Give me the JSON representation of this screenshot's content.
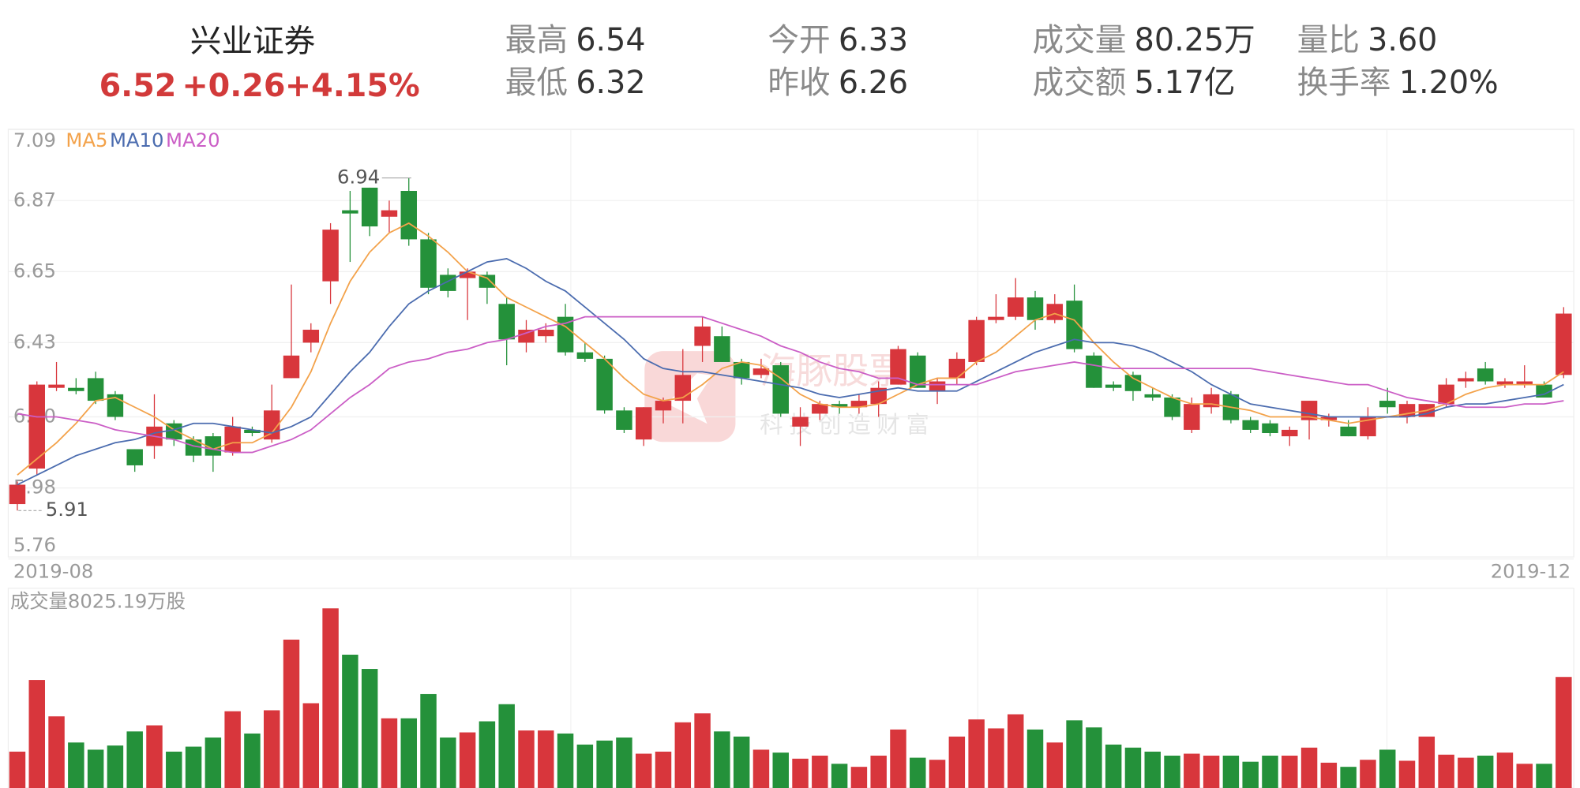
{
  "header": {
    "name": "兴业证券",
    "price": "6.52",
    "change": "+0.26",
    "change_pct": "+4.15%",
    "stats": [
      {
        "label": "最高",
        "value": "6.54"
      },
      {
        "label": "最低",
        "value": "6.32"
      },
      {
        "label": "今开",
        "value": "6.33"
      },
      {
        "label": "昨收",
        "value": "6.26"
      },
      {
        "label": "成交量",
        "value": "80.25万"
      },
      {
        "label": "成交额",
        "value": "5.17亿"
      },
      {
        "label": "量比",
        "value": "3.60"
      },
      {
        "label": "换手率",
        "value": "1.20%"
      }
    ]
  },
  "watermark": {
    "brand": "海豚股票",
    "slogan": "科技创造财富"
  },
  "chart_data": [
    {
      "type": "candlestick",
      "up_color": "#d8363c",
      "down_color": "#24913a",
      "grid": true,
      "categories": [
        "2019-08",
        null,
        null,
        null,
        null,
        null,
        null,
        null,
        null,
        null,
        null,
        null,
        null,
        null,
        null,
        null,
        null,
        null,
        null,
        null,
        null,
        null,
        null,
        null,
        null,
        null,
        null,
        null,
        null,
        null,
        null,
        null,
        null,
        null,
        null,
        null,
        null,
        null,
        null,
        null,
        null,
        null,
        null,
        null,
        null,
        null,
        null,
        null,
        null,
        null,
        null,
        null,
        null,
        null,
        null,
        null,
        null,
        null,
        null,
        null,
        null,
        null,
        null,
        null,
        null,
        null,
        null,
        null,
        null,
        null,
        null,
        null,
        null,
        null,
        null,
        null,
        null,
        null,
        null,
        "2019-12"
      ],
      "open": [
        5.93,
        6.04,
        6.29,
        6.29,
        6.32,
        6.27,
        6.1,
        6.11,
        6.18,
        6.13,
        6.14,
        6.09,
        6.16,
        6.13,
        6.32,
        6.43,
        6.62,
        6.84,
        6.91,
        6.82,
        6.9,
        6.75,
        6.64,
        6.63,
        6.64,
        6.55,
        6.43,
        6.45,
        6.51,
        6.4,
        6.38,
        6.22,
        6.13,
        6.22,
        6.25,
        6.42,
        6.45,
        6.37,
        6.33,
        6.36,
        6.17,
        6.21,
        6.24,
        6.23,
        6.24,
        6.3,
        6.39,
        6.28,
        6.32,
        6.37,
        6.5,
        6.51,
        6.57,
        6.5,
        6.56,
        6.39,
        6.3,
        6.33,
        6.27,
        6.26,
        6.16,
        6.23,
        6.27,
        6.19,
        6.18,
        6.14,
        6.19,
        6.19,
        6.17,
        6.14,
        6.25,
        6.2,
        6.2,
        6.24,
        6.31,
        6.35,
        6.3,
        6.3,
        6.3,
        6.33
      ],
      "high": [
        6.0,
        6.31,
        6.37,
        6.32,
        6.34,
        6.28,
        6.1,
        6.27,
        6.19,
        6.14,
        6.15,
        6.2,
        6.17,
        6.3,
        6.61,
        6.49,
        6.8,
        6.9,
        6.91,
        6.87,
        6.94,
        6.77,
        6.66,
        6.66,
        6.65,
        6.57,
        6.5,
        6.49,
        6.55,
        6.43,
        6.39,
        6.23,
        6.23,
        6.26,
        6.41,
        6.51,
        6.48,
        6.38,
        6.38,
        6.37,
        6.23,
        6.25,
        6.25,
        6.27,
        6.31,
        6.42,
        6.4,
        6.32,
        6.4,
        6.51,
        6.58,
        6.63,
        6.59,
        6.58,
        6.61,
        6.4,
        6.31,
        6.34,
        6.29,
        6.27,
        6.26,
        6.29,
        6.28,
        6.2,
        6.19,
        6.17,
        6.25,
        6.21,
        6.19,
        6.23,
        6.29,
        6.25,
        6.24,
        6.32,
        6.34,
        6.37,
        6.32,
        6.36,
        6.31,
        6.54
      ],
      "low": [
        5.91,
        6.02,
        6.28,
        6.27,
        6.24,
        6.19,
        6.03,
        6.07,
        6.11,
        6.06,
        6.03,
        6.08,
        6.14,
        6.12,
        6.32,
        6.4,
        6.55,
        6.68,
        6.76,
        6.77,
        6.73,
        6.58,
        6.57,
        6.5,
        6.55,
        6.36,
        6.4,
        6.43,
        6.39,
        6.37,
        6.21,
        6.15,
        6.11,
        6.18,
        6.18,
        6.37,
        6.37,
        6.3,
        6.32,
        6.2,
        6.11,
        6.19,
        6.21,
        6.21,
        6.2,
        6.3,
        6.29,
        6.24,
        6.3,
        6.36,
        6.49,
        6.5,
        6.47,
        6.49,
        6.4,
        6.29,
        6.28,
        6.25,
        6.25,
        6.19,
        6.15,
        6.21,
        6.18,
        6.15,
        6.14,
        6.11,
        6.13,
        6.17,
        6.14,
        6.13,
        6.21,
        6.18,
        6.2,
        6.23,
        6.29,
        6.3,
        6.29,
        6.29,
        6.26,
        6.32
      ],
      "close": [
        5.99,
        6.3,
        6.3,
        6.28,
        6.25,
        6.2,
        6.05,
        6.17,
        6.13,
        6.08,
        6.08,
        6.17,
        6.15,
        6.22,
        6.39,
        6.47,
        6.78,
        6.83,
        6.79,
        6.84,
        6.75,
        6.6,
        6.59,
        6.65,
        6.6,
        6.44,
        6.47,
        6.47,
        6.4,
        6.38,
        6.22,
        6.16,
        6.23,
        6.25,
        6.33,
        6.48,
        6.37,
        6.32,
        6.35,
        6.21,
        6.2,
        6.24,
        6.23,
        6.25,
        6.29,
        6.41,
        6.29,
        6.31,
        6.38,
        6.5,
        6.51,
        6.57,
        6.5,
        6.55,
        6.41,
        6.29,
        6.29,
        6.28,
        6.26,
        6.2,
        6.24,
        6.27,
        6.19,
        6.16,
        6.15,
        6.16,
        6.25,
        6.2,
        6.14,
        6.2,
        6.23,
        6.24,
        6.24,
        6.3,
        6.32,
        6.31,
        6.31,
        6.31,
        6.26,
        6.52
      ],
      "series": [
        {
          "name": "MA5",
          "color": "#f3a24a",
          "values": [
            6.02,
            6.07,
            6.12,
            6.18,
            6.25,
            6.26,
            6.23,
            6.2,
            6.16,
            6.13,
            6.1,
            6.12,
            6.12,
            6.15,
            6.23,
            6.34,
            6.49,
            6.62,
            6.71,
            6.77,
            6.8,
            6.76,
            6.71,
            6.65,
            6.63,
            6.57,
            6.54,
            6.51,
            6.48,
            6.43,
            6.38,
            6.32,
            6.27,
            6.25,
            6.26,
            6.3,
            6.35,
            6.37,
            6.36,
            6.32,
            6.27,
            6.24,
            6.23,
            6.23,
            6.24,
            6.27,
            6.3,
            6.32,
            6.32,
            6.37,
            6.4,
            6.45,
            6.5,
            6.52,
            6.5,
            6.43,
            6.37,
            6.32,
            6.29,
            6.26,
            6.24,
            6.24,
            6.23,
            6.22,
            6.2,
            6.2,
            6.2,
            6.19,
            6.18,
            6.19,
            6.2,
            6.21,
            6.22,
            6.24,
            6.27,
            6.29,
            6.3,
            6.3,
            6.3,
            6.34
          ]
        },
        {
          "name": "MA10",
          "color": "#4b6caf",
          "values": [
            5.99,
            6.02,
            6.05,
            6.08,
            6.1,
            6.12,
            6.13,
            6.15,
            6.16,
            6.18,
            6.18,
            6.17,
            6.16,
            6.15,
            6.17,
            6.2,
            6.27,
            6.34,
            6.4,
            6.48,
            6.55,
            6.59,
            6.62,
            6.65,
            6.68,
            6.69,
            6.66,
            6.62,
            6.59,
            6.54,
            6.49,
            6.44,
            6.38,
            6.35,
            6.34,
            6.34,
            6.33,
            6.32,
            6.31,
            6.3,
            6.29,
            6.27,
            6.26,
            6.27,
            6.28,
            6.29,
            6.28,
            6.28,
            6.28,
            6.31,
            6.34,
            6.37,
            6.4,
            6.42,
            6.44,
            6.43,
            6.43,
            6.42,
            6.4,
            6.37,
            6.34,
            6.3,
            6.27,
            6.24,
            6.23,
            6.22,
            6.21,
            6.2,
            6.2,
            6.2,
            6.2,
            6.2,
            6.21,
            6.23,
            6.24,
            6.24,
            6.25,
            6.26,
            6.27,
            6.3
          ]
        },
        {
          "name": "MA20",
          "color": "#cb5ec6",
          "values": [
            6.21,
            6.2,
            6.2,
            6.19,
            6.18,
            6.16,
            6.15,
            6.14,
            6.13,
            6.11,
            6.1,
            6.09,
            6.09,
            6.11,
            6.13,
            6.16,
            6.21,
            6.26,
            6.3,
            6.35,
            6.37,
            6.38,
            6.4,
            6.41,
            6.43,
            6.44,
            6.46,
            6.48,
            6.49,
            6.51,
            6.51,
            6.51,
            6.51,
            6.51,
            6.51,
            6.51,
            6.49,
            6.47,
            6.45,
            6.42,
            6.4,
            6.37,
            6.35,
            6.34,
            6.32,
            6.32,
            6.3,
            6.3,
            6.3,
            6.3,
            6.32,
            6.34,
            6.35,
            6.36,
            6.37,
            6.36,
            6.35,
            6.35,
            6.35,
            6.35,
            6.35,
            6.35,
            6.35,
            6.35,
            6.34,
            6.33,
            6.32,
            6.31,
            6.3,
            6.3,
            6.28,
            6.26,
            6.25,
            6.24,
            6.23,
            6.23,
            6.23,
            6.24,
            6.24,
            6.25
          ]
        }
      ],
      "ylim": [
        5.76,
        7.09
      ],
      "yticks": [
        7.09,
        6.87,
        6.65,
        6.43,
        {
          "value": 6.2,
          "label": "6.20"
        },
        5.98,
        5.76
      ],
      "high_label": 6.94,
      "low_label": 5.91
    },
    {
      "type": "bar",
      "title": "成交量8025.19万股",
      "values": [
        2630,
        7810,
        5180,
        3290,
        2770,
        3070,
        4090,
        4530,
        2630,
        2990,
        3650,
        5550,
        3940,
        5620,
        10730,
        6130,
        12990,
        9640,
        8610,
        5040,
        5040,
        6790,
        3650,
        4020,
        4820,
        6060,
        4160,
        4160,
        3940,
        3140,
        3430,
        3650,
        2480,
        2630,
        4750,
        5400,
        4090,
        3720,
        2770,
        2560,
        2120,
        2340,
        1750,
        1530,
        2340,
        4230,
        2190,
        2040,
        3720,
        4960,
        4310,
        5330,
        4230,
        3290,
        4890,
        4380,
        3140,
        2920,
        2630,
        2340,
        2480,
        2340,
        2340,
        1900,
        2340,
        2340,
        2920,
        1830,
        1530,
        2040,
        2770,
        1970,
        3720,
        2410,
        2190,
        2340,
        2560,
        1750,
        1750,
        8030
      ],
      "ylim": [
        0,
        14300
      ]
    }
  ]
}
